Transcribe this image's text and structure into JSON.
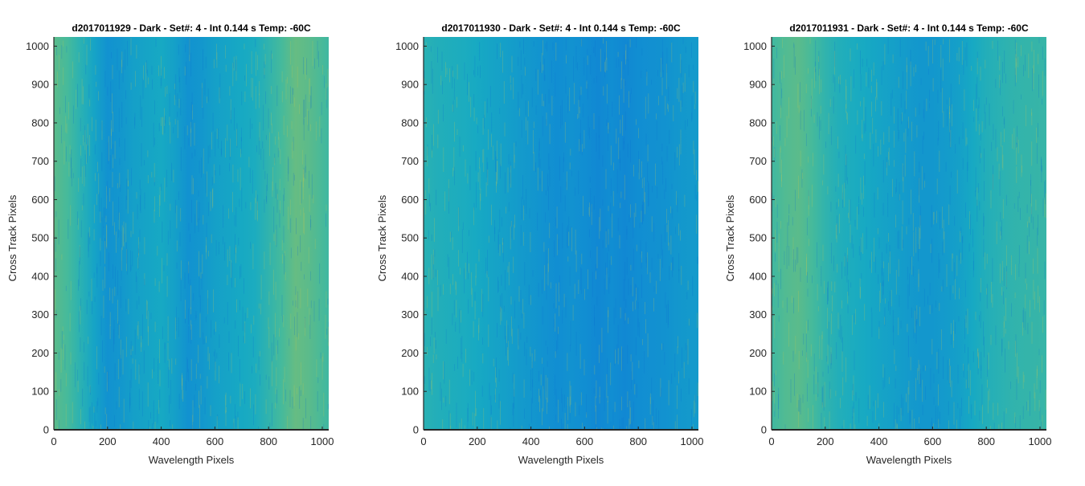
{
  "chart_data": [
    {
      "type": "heatmap",
      "title": "d2017011929 - Dark - Set#: 4 - Int 0.144 s Temp: -60C",
      "xlabel": "Wavelength Pixels",
      "ylabel": "Cross Track Pixels",
      "xlim": [
        0,
        1024
      ],
      "ylim": [
        0,
        1024
      ],
      "xticks": [
        0,
        200,
        400,
        600,
        800,
        1000
      ],
      "yticks": [
        0,
        100,
        200,
        300,
        400,
        500,
        600,
        700,
        800,
        900,
        1000
      ],
      "grid": false,
      "colormap": "parula",
      "column_profile": {
        "x": [
          0,
          50,
          100,
          150,
          200,
          250,
          300,
          350,
          400,
          450,
          500,
          550,
          600,
          650,
          700,
          750,
          800,
          850,
          900,
          950,
          1024
        ],
        "level": [
          0.62,
          0.58,
          0.5,
          0.42,
          0.34,
          0.36,
          0.4,
          0.42,
          0.44,
          0.4,
          0.34,
          0.36,
          0.4,
          0.42,
          0.44,
          0.46,
          0.52,
          0.58,
          0.64,
          0.62,
          0.56
        ]
      }
    },
    {
      "type": "heatmap",
      "title": "d2017011930 - Dark - Set#: 4 - Int 0.144 s Temp: -60C",
      "xlabel": "Wavelength Pixels",
      "ylabel": "Cross Track Pixels",
      "xlim": [
        0,
        1024
      ],
      "ylim": [
        0,
        1024
      ],
      "xticks": [
        0,
        200,
        400,
        600,
        800,
        1000
      ],
      "yticks": [
        0,
        100,
        200,
        300,
        400,
        500,
        600,
        700,
        800,
        900,
        1000
      ],
      "grid": false,
      "colormap": "parula",
      "column_profile": {
        "x": [
          0,
          50,
          100,
          150,
          200,
          250,
          300,
          350,
          400,
          450,
          500,
          550,
          600,
          650,
          700,
          750,
          800,
          850,
          900,
          950,
          1024
        ],
        "level": [
          0.5,
          0.48,
          0.47,
          0.46,
          0.44,
          0.42,
          0.4,
          0.38,
          0.36,
          0.34,
          0.32,
          0.34,
          0.32,
          0.3,
          0.32,
          0.3,
          0.32,
          0.33,
          0.34,
          0.36,
          0.38
        ]
      }
    },
    {
      "type": "heatmap",
      "title": "d2017011931 - Dark - Set#: 4 - Int 0.144 s Temp: -60C",
      "xlabel": "Wavelength Pixels",
      "ylabel": "Cross Track Pixels",
      "xlim": [
        0,
        1024
      ],
      "ylim": [
        0,
        1024
      ],
      "xticks": [
        0,
        200,
        400,
        600,
        800,
        1000
      ],
      "yticks": [
        0,
        100,
        200,
        300,
        400,
        500,
        600,
        700,
        800,
        900,
        1000
      ],
      "grid": false,
      "colormap": "parula",
      "column_profile": {
        "x": [
          0,
          50,
          100,
          150,
          200,
          250,
          300,
          350,
          400,
          450,
          500,
          550,
          600,
          650,
          700,
          750,
          800,
          850,
          900,
          950,
          1024
        ],
        "level": [
          0.56,
          0.6,
          0.62,
          0.58,
          0.52,
          0.48,
          0.46,
          0.44,
          0.42,
          0.4,
          0.38,
          0.36,
          0.36,
          0.38,
          0.4,
          0.44,
          0.48,
          0.5,
          0.52,
          0.53,
          0.54
        ]
      }
    }
  ]
}
